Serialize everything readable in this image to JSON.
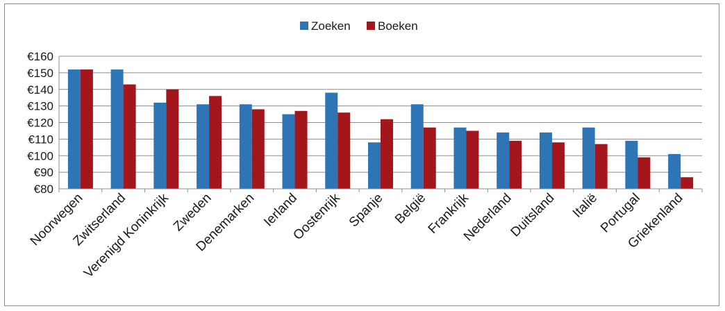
{
  "chart_data": {
    "type": "bar",
    "title": "",
    "xlabel": "",
    "ylabel": "",
    "ylim": [
      80,
      160
    ],
    "yticks": [
      80,
      90,
      100,
      110,
      120,
      130,
      140,
      150,
      160
    ],
    "ytick_labels": [
      "€80",
      "€90",
      "€100",
      "€110",
      "€120",
      "€130",
      "€140",
      "€150",
      "€160"
    ],
    "grid": true,
    "legend_position": "top-center",
    "categories": [
      "Noorwegen",
      "Zwitserland",
      "Verenigd Koninkrijk",
      "Zweden",
      "Denemarken",
      "Ierland",
      "Oostenrijk",
      "Spanje",
      "België",
      "Frankrijk",
      "Nederland",
      "Duitsland",
      "Italië",
      "Portugal",
      "Griekenland"
    ],
    "series": [
      {
        "name": "Zoeken",
        "color": "#2e75b6",
        "values": [
          152,
          152,
          132,
          131,
          131,
          125,
          138,
          108,
          131,
          117,
          114,
          114,
          117,
          109,
          101
        ]
      },
      {
        "name": "Boeken",
        "color": "#a3161c",
        "values": [
          152,
          143,
          140,
          136,
          128,
          127,
          126,
          122,
          117,
          115,
          109,
          108,
          107,
          99,
          87
        ]
      }
    ]
  }
}
